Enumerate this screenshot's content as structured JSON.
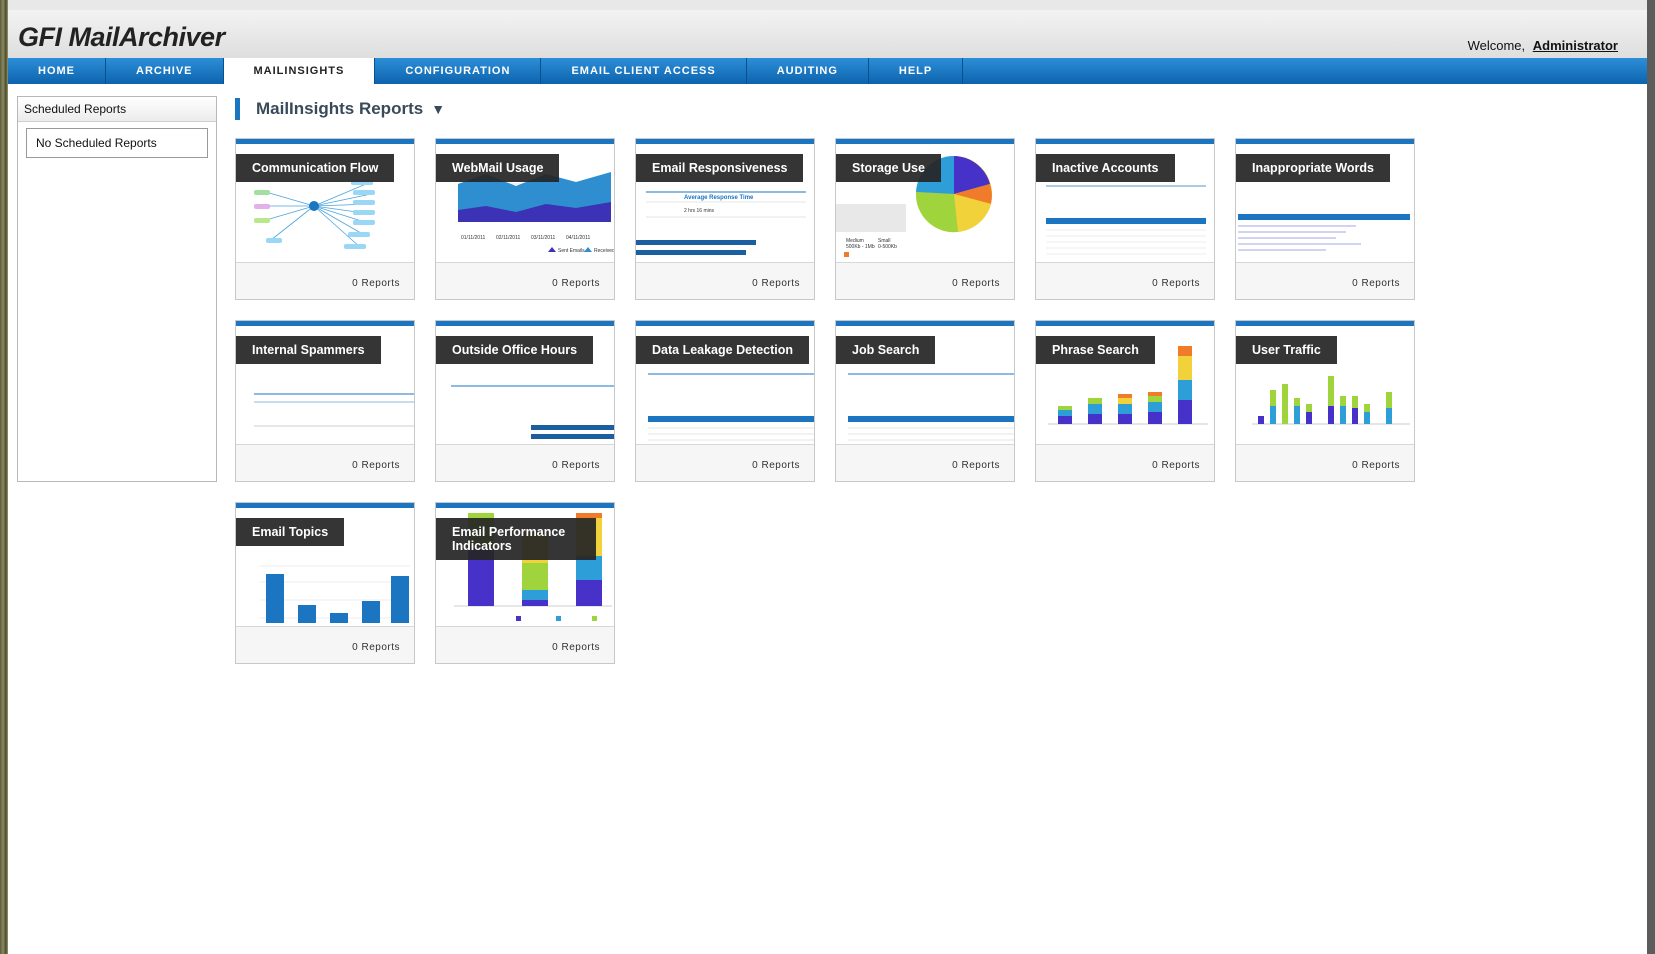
{
  "app": {
    "logo_brand": "GFI",
    "logo_name": "MailArchiver",
    "welcome_label": "Welcome,",
    "user_name": "Administrator"
  },
  "nav": [
    {
      "label": "Home",
      "active": false
    },
    {
      "label": "Archive",
      "active": false
    },
    {
      "label": "MailInsights",
      "active": true
    },
    {
      "label": "Configuration",
      "active": false
    },
    {
      "label": "Email Client Access",
      "active": false
    },
    {
      "label": "Auditing",
      "active": false
    },
    {
      "label": "Help",
      "active": false
    }
  ],
  "sidebar": {
    "title": "Scheduled Reports",
    "empty_text": "No Scheduled Reports"
  },
  "main": {
    "title": "MailInsights Reports"
  },
  "reports": [
    {
      "title": "Communication Flow",
      "count": "0 Reports"
    },
    {
      "title": "WebMail Usage",
      "count": "0 Reports"
    },
    {
      "title": "Email Responsiveness",
      "count": "0 Reports"
    },
    {
      "title": "Storage Use",
      "count": "0 Reports"
    },
    {
      "title": "Inactive Accounts",
      "count": "0 Reports"
    },
    {
      "title": "Inappropriate Words",
      "count": "0 Reports"
    },
    {
      "title": "Internal Spammers",
      "count": "0 Reports"
    },
    {
      "title": "Outside Office Hours",
      "count": "0 Reports"
    },
    {
      "title": "Data Leakage Detection",
      "count": "0 Reports"
    },
    {
      "title": "Job Search",
      "count": "0 Reports"
    },
    {
      "title": "Phrase Search",
      "count": "0 Reports"
    },
    {
      "title": "User Traffic",
      "count": "0 Reports"
    },
    {
      "title": "Email Topics",
      "count": "0 Reports"
    },
    {
      "title": "Email Performance Indicators",
      "count": "0 Reports"
    }
  ],
  "colors": {
    "accent": "#1b75c0",
    "nav_top": "#2c8fd8",
    "nav_bottom": "#0d63ad",
    "label_bg": "#262626"
  },
  "icons": {
    "title_menu": "chevron-down-icon"
  }
}
